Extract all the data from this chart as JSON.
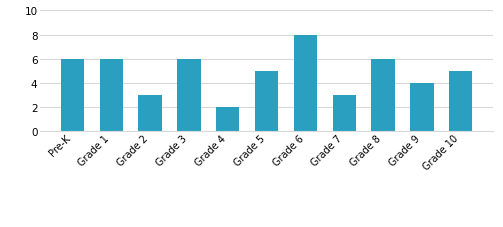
{
  "categories": [
    "Pre-K",
    "Grade 1",
    "Grade 2",
    "Grade 3",
    "Grade 4",
    "Grade 5",
    "Grade 6",
    "Grade 7",
    "Grade 8",
    "Grade 9",
    "Grade 10"
  ],
  "values": [
    6,
    6,
    3,
    6,
    2,
    5,
    8,
    3,
    6,
    4,
    5
  ],
  "bar_color": "#2b9fc0",
  "ylim": [
    0,
    10
  ],
  "yticks": [
    0,
    2,
    4,
    6,
    8,
    10
  ],
  "background_color": "#ffffff",
  "grid_color": "#d9d9d9"
}
